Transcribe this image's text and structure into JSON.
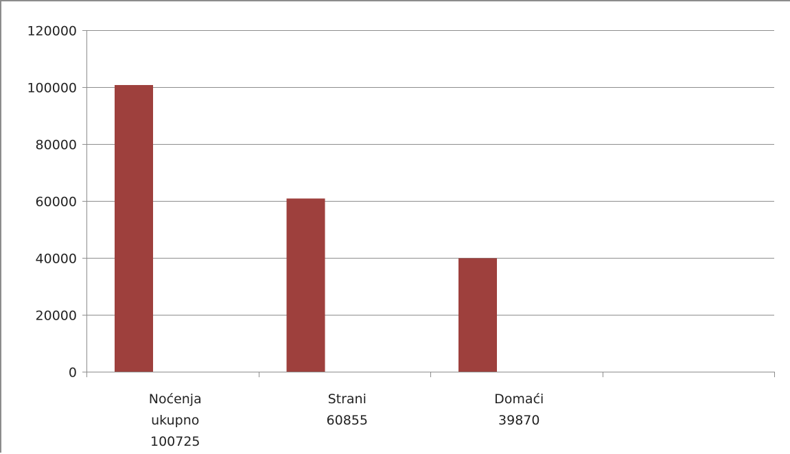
{
  "chart_data": {
    "type": "bar",
    "title": "",
    "xlabel": "",
    "ylabel": "",
    "categories": [
      [
        "Noćenja",
        "ukupno",
        "100725"
      ],
      [
        "Strani",
        "60855"
      ],
      [
        "Domaći",
        "39870"
      ],
      [
        ""
      ]
    ],
    "values": [
      100725,
      60855,
      39870,
      null
    ],
    "y_ticks": [
      "0",
      "20000",
      "40000",
      "60000",
      "80000",
      "100000",
      "120000"
    ],
    "ylim": [
      0,
      120000
    ],
    "grid": true,
    "legend": "none",
    "colors": {
      "bar": "#9e403d",
      "grid": "#8c8c8c",
      "axis": "#8c8c8c"
    }
  }
}
